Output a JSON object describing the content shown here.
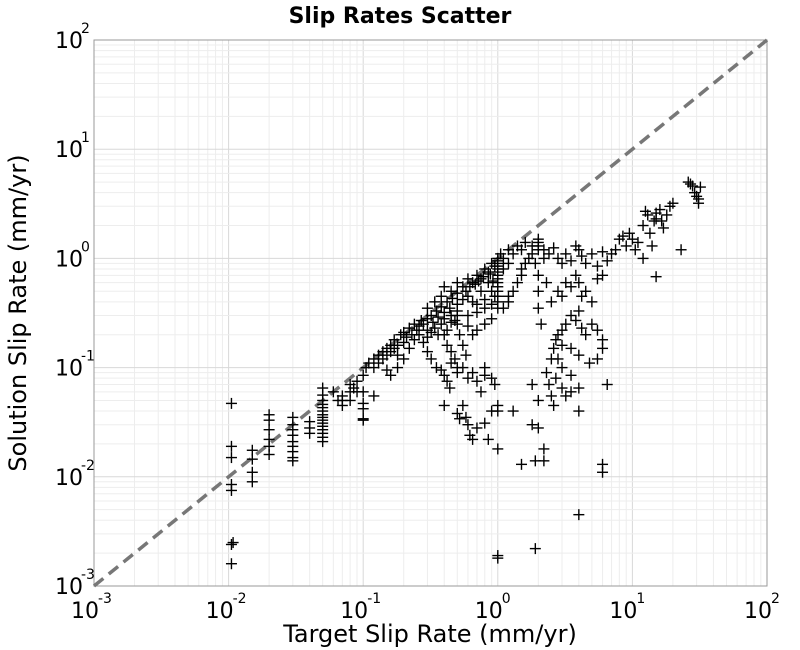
{
  "chart_data": {
    "type": "scatter",
    "title": "Slip Rates Scatter",
    "xlabel": "Target Slip Rate (mm/yr)",
    "ylabel": "Solution Slip Rate (mm/yr)",
    "x_scale": "log",
    "y_scale": "log",
    "xlim": [
      0.001,
      100
    ],
    "ylim": [
      0.001,
      100
    ],
    "grid": true,
    "x_ticks": [
      {
        "base": "10",
        "exp": "-3",
        "value": 0.001
      },
      {
        "base": "10",
        "exp": "-2",
        "value": 0.01
      },
      {
        "base": "10",
        "exp": "-1",
        "value": 0.1
      },
      {
        "base": "10",
        "exp": "0",
        "value": 1
      },
      {
        "base": "10",
        "exp": "1",
        "value": 10
      },
      {
        "base": "10",
        "exp": "2",
        "value": 100
      }
    ],
    "y_ticks": [
      {
        "base": "10",
        "exp": "-3",
        "value": 0.001
      },
      {
        "base": "10",
        "exp": "-2",
        "value": 0.01
      },
      {
        "base": "10",
        "exp": "-1",
        "value": 0.1
      },
      {
        "base": "10",
        "exp": "0",
        "value": 1
      },
      {
        "base": "10",
        "exp": "1",
        "value": 10
      },
      {
        "base": "10",
        "exp": "2",
        "value": 100
      }
    ],
    "reference_line": {
      "style": "dashed",
      "color": "#777777",
      "points": [
        [
          0.001,
          0.001
        ],
        [
          100,
          100
        ]
      ]
    },
    "marker": {
      "symbol": "+",
      "color": "#000000"
    },
    "points": [
      [
        0.0105,
        0.047
      ],
      [
        0.0105,
        0.019
      ],
      [
        0.0105,
        0.015
      ],
      [
        0.0105,
        0.0085
      ],
      [
        0.0105,
        0.0075
      ],
      [
        0.0108,
        0.0025
      ],
      [
        0.0105,
        0.0024
      ],
      [
        0.0105,
        0.0016
      ],
      [
        0.015,
        0.0175
      ],
      [
        0.015,
        0.0145
      ],
      [
        0.015,
        0.011
      ],
      [
        0.015,
        0.009
      ],
      [
        0.02,
        0.037
      ],
      [
        0.02,
        0.033
      ],
      [
        0.02,
        0.027
      ],
      [
        0.02,
        0.022
      ],
      [
        0.02,
        0.019
      ],
      [
        0.02,
        0.016
      ],
      [
        0.03,
        0.035
      ],
      [
        0.03,
        0.03
      ],
      [
        0.03,
        0.027
      ],
      [
        0.03,
        0.024
      ],
      [
        0.03,
        0.021
      ],
      [
        0.03,
        0.019
      ],
      [
        0.03,
        0.017
      ],
      [
        0.03,
        0.015
      ],
      [
        0.03,
        0.014
      ],
      [
        0.04,
        0.032
      ],
      [
        0.04,
        0.028
      ],
      [
        0.04,
        0.025
      ],
      [
        0.05,
        0.065
      ],
      [
        0.05,
        0.056
      ],
      [
        0.05,
        0.05
      ],
      [
        0.05,
        0.046
      ],
      [
        0.05,
        0.043
      ],
      [
        0.05,
        0.04
      ],
      [
        0.05,
        0.037
      ],
      [
        0.05,
        0.035
      ],
      [
        0.05,
        0.033
      ],
      [
        0.05,
        0.031
      ],
      [
        0.05,
        0.029
      ],
      [
        0.05,
        0.027
      ],
      [
        0.05,
        0.025
      ],
      [
        0.05,
        0.023
      ],
      [
        0.05,
        0.021
      ],
      [
        0.06,
        0.06
      ],
      [
        0.065,
        0.05
      ],
      [
        0.07,
        0.055
      ],
      [
        0.07,
        0.05
      ],
      [
        0.07,
        0.045
      ],
      [
        0.08,
        0.07
      ],
      [
        0.08,
        0.06
      ],
      [
        0.08,
        0.05
      ],
      [
        0.085,
        0.065
      ],
      [
        0.09,
        0.075
      ],
      [
        0.09,
        0.06
      ],
      [
        0.1,
        0.047
      ],
      [
        0.1,
        0.042
      ],
      [
        0.1,
        0.034
      ],
      [
        0.1,
        0.033
      ],
      [
        0.1,
        0.06
      ],
      [
        0.12,
        0.055
      ],
      [
        0.1,
        0.085
      ],
      [
        0.105,
        0.1
      ],
      [
        0.11,
        0.11
      ],
      [
        0.12,
        0.1
      ],
      [
        0.12,
        0.12
      ],
      [
        0.13,
        0.11
      ],
      [
        0.13,
        0.13
      ],
      [
        0.14,
        0.12
      ],
      [
        0.14,
        0.14
      ],
      [
        0.15,
        0.13
      ],
      [
        0.15,
        0.15
      ],
      [
        0.16,
        0.14
      ],
      [
        0.16,
        0.16
      ],
      [
        0.17,
        0.15
      ],
      [
        0.17,
        0.18
      ],
      [
        0.18,
        0.13
      ],
      [
        0.18,
        0.16
      ],
      [
        0.19,
        0.2
      ],
      [
        0.2,
        0.17
      ],
      [
        0.2,
        0.21
      ],
      [
        0.21,
        0.19
      ],
      [
        0.22,
        0.23
      ],
      [
        0.23,
        0.2
      ],
      [
        0.24,
        0.25
      ],
      [
        0.25,
        0.22
      ],
      [
        0.26,
        0.24
      ],
      [
        0.27,
        0.27
      ],
      [
        0.28,
        0.25
      ],
      [
        0.3,
        0.28
      ],
      [
        0.3,
        0.22
      ],
      [
        0.32,
        0.3
      ],
      [
        0.33,
        0.26
      ],
      [
        0.35,
        0.33
      ],
      [
        0.36,
        0.29
      ],
      [
        0.38,
        0.36
      ],
      [
        0.4,
        0.32
      ],
      [
        0.42,
        0.4
      ],
      [
        0.44,
        0.35
      ],
      [
        0.46,
        0.43
      ],
      [
        0.5,
        0.48
      ],
      [
        0.15,
        0.095
      ],
      [
        0.16,
        0.085
      ],
      [
        0.18,
        0.1
      ],
      [
        0.2,
        0.12
      ],
      [
        0.22,
        0.15
      ],
      [
        0.24,
        0.18
      ],
      [
        0.26,
        0.2
      ],
      [
        0.28,
        0.17
      ],
      [
        0.3,
        0.19
      ],
      [
        0.32,
        0.21
      ],
      [
        0.34,
        0.23
      ],
      [
        0.36,
        0.2
      ],
      [
        0.38,
        0.25
      ],
      [
        0.4,
        0.28
      ],
      [
        0.42,
        0.22
      ],
      [
        0.45,
        0.3
      ],
      [
        0.48,
        0.27
      ],
      [
        0.5,
        0.33
      ],
      [
        0.5,
        0.38
      ],
      [
        0.5,
        0.25
      ],
      [
        0.3,
        0.35
      ],
      [
        0.34,
        0.4
      ],
      [
        0.38,
        0.45
      ],
      [
        0.4,
        0.55
      ],
      [
        0.45,
        0.5
      ],
      [
        0.5,
        0.6
      ],
      [
        0.55,
        0.55
      ],
      [
        0.6,
        0.65
      ],
      [
        0.65,
        0.6
      ],
      [
        0.7,
        0.7
      ],
      [
        0.75,
        0.65
      ],
      [
        0.8,
        0.8
      ],
      [
        0.85,
        0.75
      ],
      [
        0.9,
        0.9
      ],
      [
        0.95,
        0.85
      ],
      [
        1.0,
        1.0
      ],
      [
        1.0,
        0.95
      ],
      [
        1.0,
        0.9
      ],
      [
        1.0,
        0.85
      ],
      [
        1.0,
        0.8
      ],
      [
        1.0,
        0.75
      ],
      [
        1.0,
        0.7
      ],
      [
        1.0,
        0.65
      ],
      [
        1.0,
        0.6
      ],
      [
        1.0,
        0.55
      ],
      [
        1.0,
        0.5
      ],
      [
        1.0,
        0.45
      ],
      [
        1.0,
        0.4
      ],
      [
        1.0,
        0.35
      ],
      [
        1.05,
        1.1
      ],
      [
        1.1,
        1.0
      ],
      [
        1.1,
        0.8
      ],
      [
        1.2,
        1.2
      ],
      [
        1.2,
        0.9
      ],
      [
        1.3,
        1.1
      ],
      [
        1.4,
        1.3
      ],
      [
        1.5,
        1.2
      ],
      [
        1.5,
        0.8
      ],
      [
        1.6,
        1.4
      ],
      [
        1.7,
        1.0
      ],
      [
        1.8,
        1.3
      ],
      [
        1.9,
        0.9
      ],
      [
        2.0,
        1.5
      ],
      [
        2.0,
        1.2
      ],
      [
        2.0,
        0.7
      ],
      [
        2.0,
        0.5
      ],
      [
        2.0,
        0.35
      ],
      [
        2.1,
        0.25
      ],
      [
        2.2,
        1.0
      ],
      [
        2.3,
        0.6
      ],
      [
        0.6,
        0.45
      ],
      [
        0.65,
        0.4
      ],
      [
        0.7,
        0.38
      ],
      [
        0.75,
        0.5
      ],
      [
        0.8,
        0.42
      ],
      [
        0.85,
        0.6
      ],
      [
        0.9,
        0.5
      ],
      [
        0.95,
        0.45
      ],
      [
        0.6,
        0.3
      ],
      [
        0.7,
        0.32
      ],
      [
        0.8,
        0.35
      ],
      [
        0.9,
        0.38
      ],
      [
        0.55,
        0.42
      ],
      [
        0.58,
        0.5
      ],
      [
        0.62,
        0.55
      ],
      [
        0.68,
        0.58
      ],
      [
        0.72,
        0.62
      ],
      [
        0.78,
        0.68
      ],
      [
        0.88,
        0.72
      ],
      [
        0.92,
        0.62
      ],
      [
        0.8,
        0.25
      ],
      [
        0.9,
        0.28
      ],
      [
        0.7,
        0.22
      ],
      [
        0.65,
        0.2
      ],
      [
        0.6,
        0.24
      ],
      [
        0.5,
        0.3
      ],
      [
        0.45,
        0.26
      ],
      [
        0.52,
        0.2
      ],
      [
        0.55,
        0.16
      ],
      [
        0.58,
        0.13
      ],
      [
        0.4,
        0.2
      ],
      [
        0.42,
        0.16
      ],
      [
        0.45,
        0.14
      ],
      [
        0.48,
        0.12
      ],
      [
        0.5,
        0.1
      ],
      [
        0.5,
        0.09
      ],
      [
        0.3,
        0.14
      ],
      [
        0.32,
        0.12
      ],
      [
        0.35,
        0.1
      ],
      [
        0.38,
        0.095
      ],
      [
        0.4,
        0.085
      ],
      [
        0.42,
        0.075
      ],
      [
        0.44,
        0.065
      ],
      [
        0.45,
        0.11
      ],
      [
        0.55,
        0.1
      ],
      [
        0.6,
        0.08
      ],
      [
        0.65,
        0.09
      ],
      [
        0.7,
        0.075
      ],
      [
        0.75,
        0.06
      ],
      [
        0.8,
        0.085
      ],
      [
        0.8,
        0.1
      ],
      [
        0.9,
        0.08
      ],
      [
        0.95,
        0.07
      ],
      [
        0.4,
        0.045
      ],
      [
        0.5,
        0.038
      ],
      [
        0.52,
        0.034
      ],
      [
        0.55,
        0.045
      ],
      [
        0.58,
        0.035
      ],
      [
        0.6,
        0.03
      ],
      [
        0.62,
        0.024
      ],
      [
        0.65,
        0.022
      ],
      [
        0.7,
        0.028
      ],
      [
        0.8,
        0.031
      ],
      [
        0.85,
        0.022
      ],
      [
        0.9,
        0.04
      ],
      [
        1.0,
        0.045
      ],
      [
        1.0,
        0.04
      ],
      [
        1.0,
        0.018
      ],
      [
        1.0,
        0.0019
      ],
      [
        1.0,
        0.0018
      ],
      [
        1.3,
        0.04
      ],
      [
        1.5,
        0.013
      ],
      [
        1.8,
        0.03
      ],
      [
        1.8,
        0.07
      ],
      [
        1.9,
        0.014
      ],
      [
        1.9,
        0.0022
      ],
      [
        2.0,
        0.028
      ],
      [
        2.0,
        0.05
      ],
      [
        2.2,
        0.014
      ],
      [
        2.2,
        0.018
      ],
      [
        2.3,
        0.09
      ],
      [
        2.4,
        0.07
      ],
      [
        2.5,
        0.055
      ],
      [
        2.6,
        0.045
      ],
      [
        2.7,
        0.08
      ],
      [
        2.8,
        0.12
      ],
      [
        3.0,
        0.1
      ],
      [
        3.0,
        0.065
      ],
      [
        3.2,
        0.055
      ],
      [
        3.5,
        0.085
      ],
      [
        3.5,
        0.06
      ],
      [
        4.0,
        0.065
      ],
      [
        4.0,
        0.04
      ],
      [
        4.0,
        0.0045
      ],
      [
        6.0,
        0.013
      ],
      [
        6.0,
        0.011
      ],
      [
        6.5,
        0.07
      ],
      [
        2.5,
        0.12
      ],
      [
        2.6,
        0.15
      ],
      [
        2.7,
        0.18
      ],
      [
        2.8,
        0.2
      ],
      [
        3.0,
        0.22
      ],
      [
        3.2,
        0.25
      ],
      [
        3.5,
        0.3
      ],
      [
        3.8,
        0.27
      ],
      [
        4.0,
        0.33
      ],
      [
        4.2,
        0.23
      ],
      [
        4.5,
        0.2
      ],
      [
        5.0,
        0.25
      ],
      [
        5.5,
        0.22
      ],
      [
        6.0,
        0.18
      ],
      [
        6.0,
        0.15
      ],
      [
        5.5,
        0.12
      ],
      [
        4.8,
        0.11
      ],
      [
        4.0,
        0.13
      ],
      [
        3.5,
        0.15
      ],
      [
        3.0,
        0.16
      ],
      [
        2.5,
        0.4
      ],
      [
        2.8,
        0.5
      ],
      [
        3.0,
        0.45
      ],
      [
        3.2,
        0.6
      ],
      [
        3.5,
        0.55
      ],
      [
        3.8,
        0.7
      ],
      [
        4.0,
        0.6
      ],
      [
        4.2,
        0.45
      ],
      [
        4.5,
        0.5
      ],
      [
        5.0,
        0.4
      ],
      [
        2.2,
        1.2
      ],
      [
        2.4,
        1.1
      ],
      [
        2.6,
        1.25
      ],
      [
        2.8,
        1.0
      ],
      [
        3.0,
        0.9
      ],
      [
        3.2,
        1.1
      ],
      [
        3.5,
        0.95
      ],
      [
        3.8,
        1.3
      ],
      [
        4.0,
        1.2
      ],
      [
        4.2,
        1.05
      ],
      [
        4.5,
        0.9
      ],
      [
        5.0,
        1.1
      ],
      [
        5.5,
        0.85
      ],
      [
        6.0,
        1.15
      ],
      [
        6.5,
        0.95
      ],
      [
        6.0,
        0.7
      ],
      [
        5.5,
        0.65
      ],
      [
        2.0,
        1.3
      ],
      [
        2.0,
        1.4
      ],
      [
        1.8,
        1.1
      ],
      [
        1.6,
        0.9
      ],
      [
        1.5,
        0.7
      ],
      [
        1.4,
        0.6
      ],
      [
        1.3,
        0.5
      ],
      [
        1.2,
        0.45
      ],
      [
        1.2,
        0.4
      ],
      [
        1.1,
        0.35
      ],
      [
        8.0,
        1.5
      ],
      [
        8.5,
        1.6
      ],
      [
        9.0,
        1.3
      ],
      [
        9.5,
        1.7
      ],
      [
        10.0,
        1.5
      ],
      [
        10.5,
        1.2
      ],
      [
        11.0,
        1.4
      ],
      [
        12.0,
        2.0
      ],
      [
        12.5,
        2.7
      ],
      [
        13.0,
        2.5
      ],
      [
        13.5,
        1.7
      ],
      [
        14.0,
        1.3
      ],
      [
        14.5,
        2.2
      ],
      [
        15.0,
        2.6
      ],
      [
        15.0,
        2.3
      ],
      [
        16.0,
        2.8
      ],
      [
        16.5,
        2.2
      ],
      [
        17.0,
        1.9
      ],
      [
        18.0,
        2.5
      ],
      [
        7.0,
        1.1
      ],
      [
        7.5,
        1.2
      ],
      [
        12.0,
        1.0
      ],
      [
        15.0,
        0.68
      ],
      [
        23.0,
        1.2
      ],
      [
        19.0,
        3.0
      ],
      [
        20.0,
        3.2
      ],
      [
        26.0,
        5.0
      ],
      [
        27.0,
        4.8
      ],
      [
        28.0,
        4.6
      ],
      [
        29.0,
        4.0
      ],
      [
        30.0,
        3.7
      ],
      [
        31.0,
        3.5
      ],
      [
        31.0,
        3.2
      ],
      [
        32.0,
        4.5
      ]
    ]
  }
}
